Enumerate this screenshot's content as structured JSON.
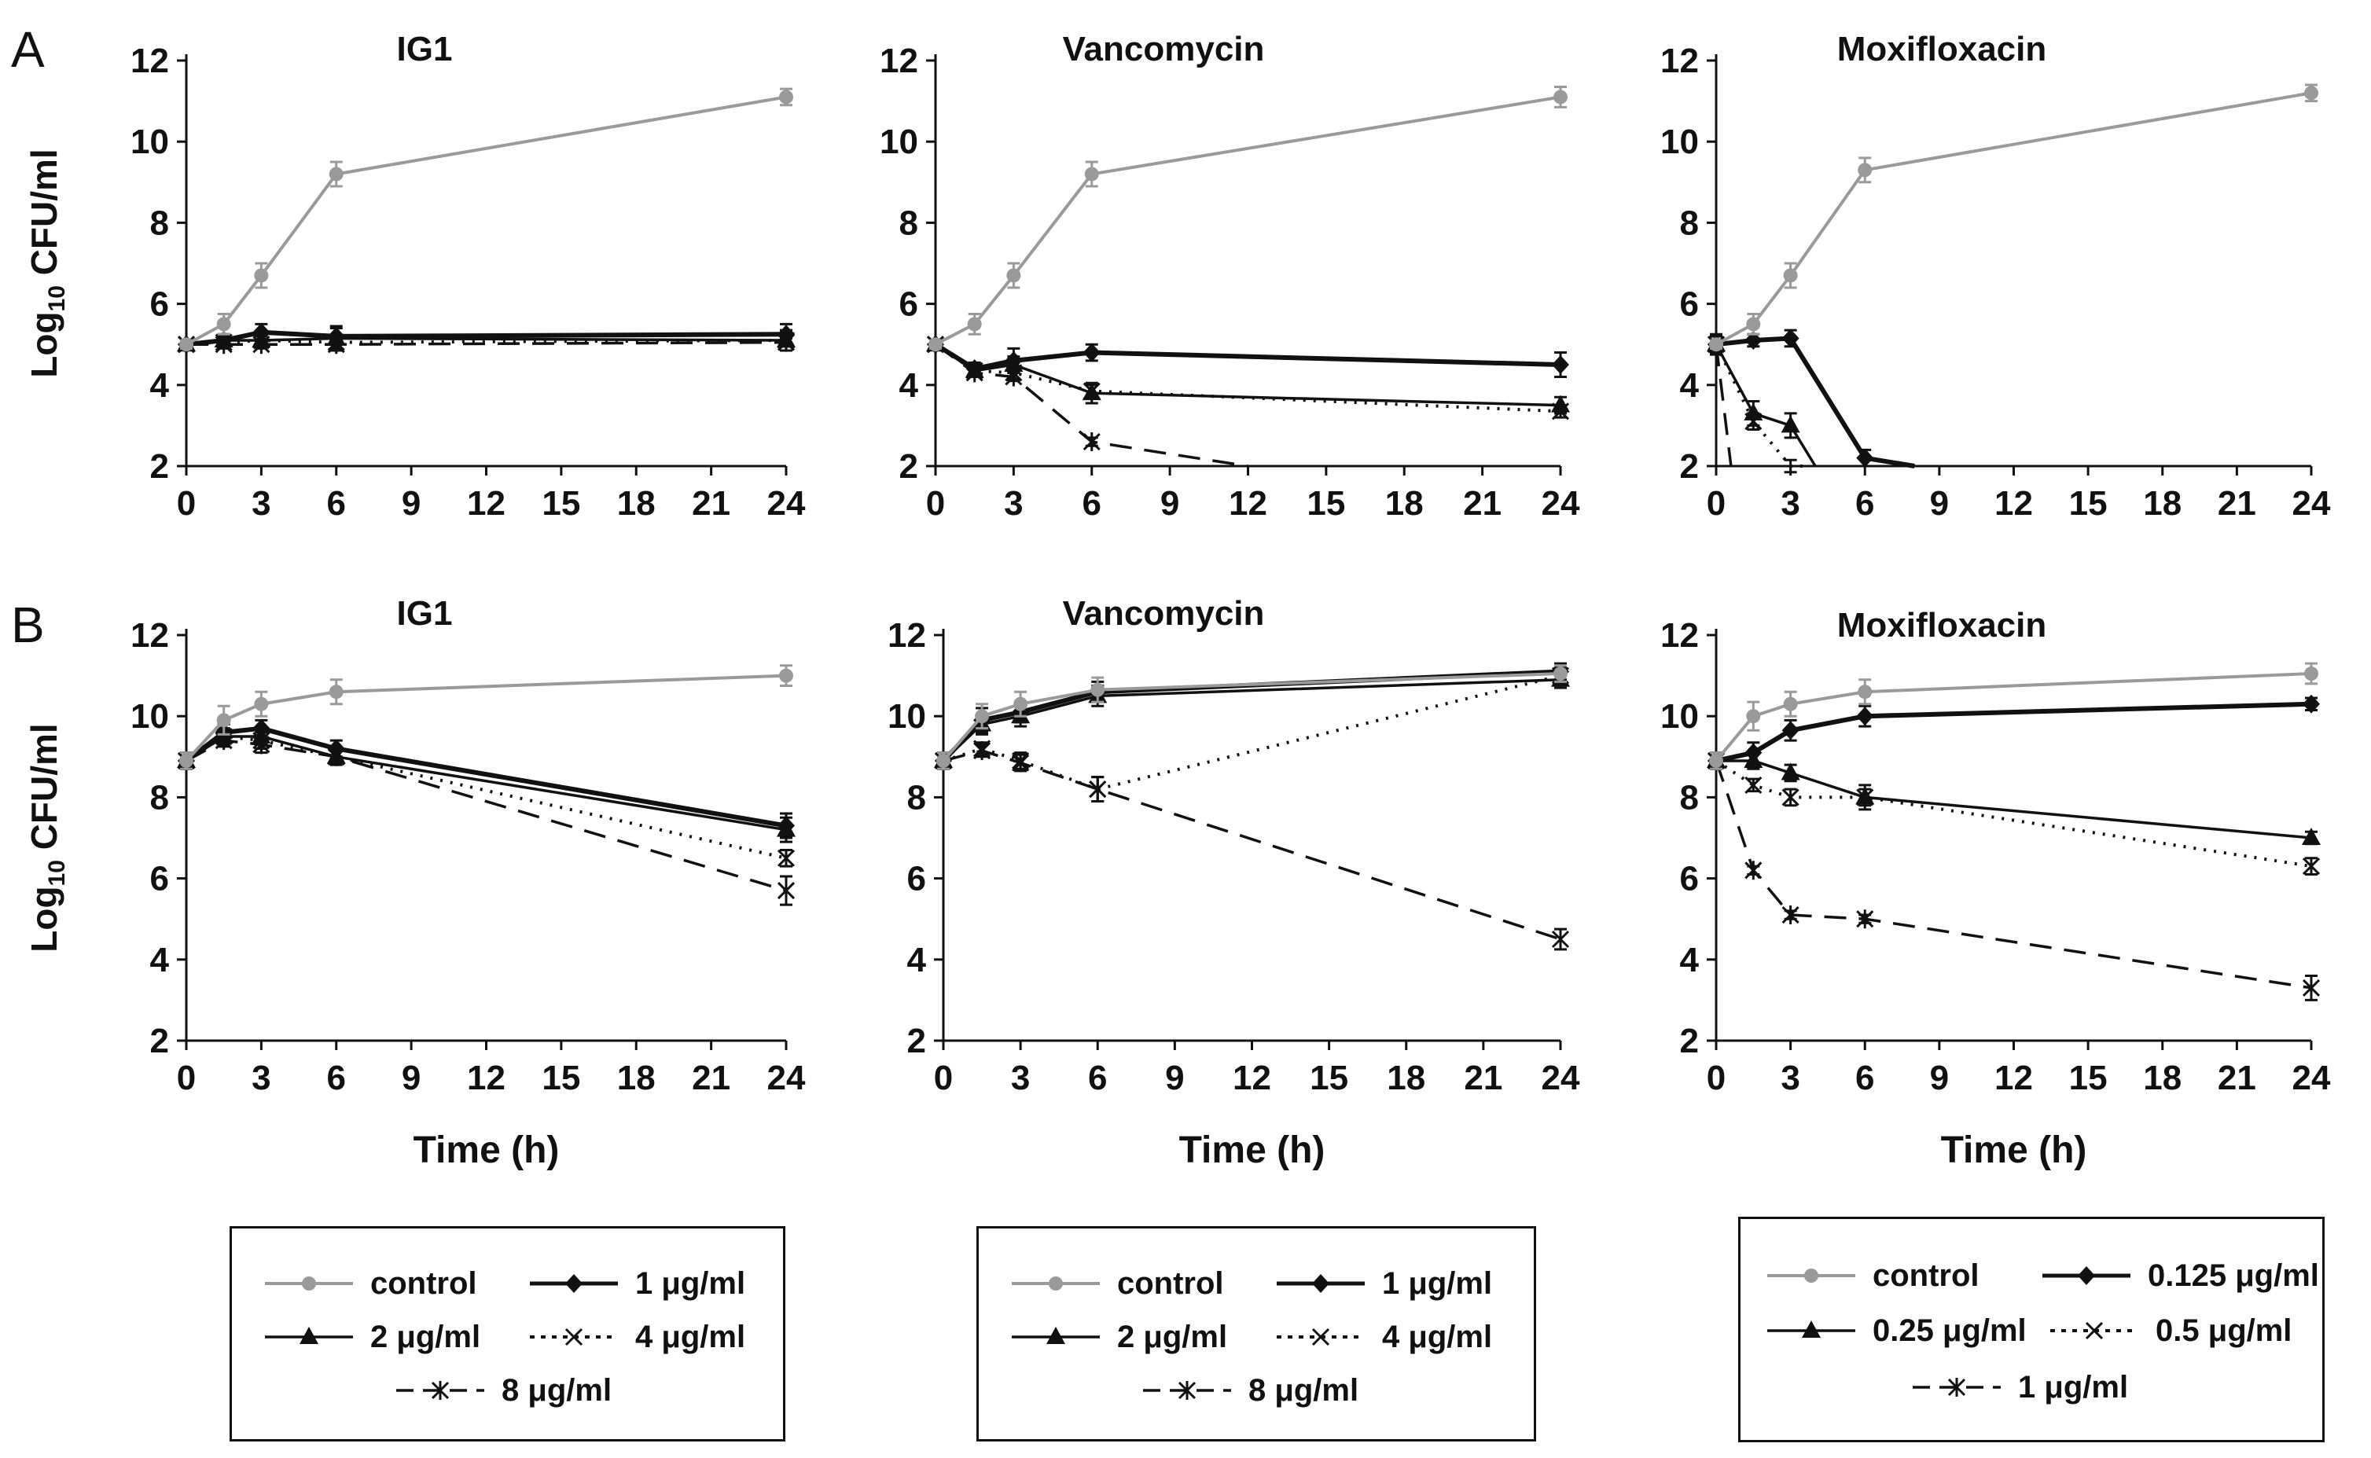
{
  "panel_labels": {
    "a": "A",
    "b": "B"
  },
  "legends": [
    {
      "entries": [
        {
          "label": "control",
          "style": "control"
        },
        {
          "label": "1 μg/ml",
          "style": "diamond"
        },
        {
          "label": "2 μg/ml",
          "style": "triangle"
        },
        {
          "label": "4 μg/ml",
          "style": "cross"
        },
        {
          "label": "8 μg/ml",
          "style": "star"
        }
      ]
    },
    {
      "entries": [
        {
          "label": "control",
          "style": "control"
        },
        {
          "label": "1 μg/ml",
          "style": "diamond"
        },
        {
          "label": "2 μg/ml",
          "style": "triangle"
        },
        {
          "label": "4 μg/ml",
          "style": "cross"
        },
        {
          "label": "8 μg/ml",
          "style": "star"
        }
      ]
    },
    {
      "entries": [
        {
          "label": "control",
          "style": "control"
        },
        {
          "label": "0.125 μg/ml",
          "style": "diamond"
        },
        {
          "label": "0.25 μg/ml",
          "style": "triangle"
        },
        {
          "label": "0.5 μg/ml",
          "style": "cross"
        },
        {
          "label": "1 μg/ml",
          "style": "star"
        }
      ]
    }
  ],
  "colors": {
    "control": "#9a9a9a",
    "black": "#111111"
  },
  "chart_data": [
    {
      "type": "line",
      "panel": "A",
      "title": "IG1",
      "xlabel": "",
      "ylabel": "Log10 CFU/ml",
      "ylabel_main": "Log",
      "ylabel_sub": "10",
      "ylabel_rest": " CFU/ml",
      "xlim": [
        0,
        24
      ],
      "ylim": [
        2,
        12
      ],
      "xticks": [
        0,
        3,
        6,
        9,
        12,
        15,
        18,
        21,
        24
      ],
      "yticks": [
        2,
        4,
        6,
        8,
        10,
        12
      ],
      "series": [
        {
          "name": "control",
          "style": "control",
          "x": [
            0,
            1.5,
            3,
            6,
            24
          ],
          "y": [
            5.0,
            5.5,
            6.7,
            9.2,
            11.1
          ],
          "err": [
            0.1,
            0.25,
            0.3,
            0.3,
            0.2
          ]
        },
        {
          "name": "1 μg/ml",
          "style": "diamond",
          "x": [
            0,
            1.5,
            3,
            6,
            24
          ],
          "y": [
            5.0,
            5.1,
            5.3,
            5.2,
            5.25
          ],
          "err": [
            0.1,
            0.15,
            0.2,
            0.2,
            0.25
          ]
        },
        {
          "name": "2 μg/ml",
          "style": "triangle",
          "x": [
            0,
            1.5,
            3,
            6,
            24
          ],
          "y": [
            5.0,
            5.1,
            5.1,
            5.15,
            5.1
          ],
          "err": [
            0.1,
            0.1,
            0.15,
            0.3,
            0.25
          ]
        },
        {
          "name": "4 μg/ml",
          "style": "cross",
          "x": [
            0,
            1.5,
            3,
            6,
            24
          ],
          "y": [
            5.0,
            5.05,
            5.1,
            5.05,
            5.1
          ],
          "err": [
            0.1,
            0.1,
            0.1,
            0.15,
            0.15
          ]
        },
        {
          "name": "8 μg/ml",
          "style": "star",
          "x": [
            0,
            1.5,
            3,
            6,
            24
          ],
          "y": [
            5.0,
            5.0,
            5.0,
            5.0,
            5.05
          ],
          "err": [
            0.1,
            0.1,
            0.1,
            0.1,
            0.1
          ]
        }
      ]
    },
    {
      "type": "line",
      "panel": "A",
      "title": "Vancomycin",
      "xlabel": "",
      "ylabel": "",
      "xlim": [
        0,
        24
      ],
      "ylim": [
        2,
        12
      ],
      "xticks": [
        0,
        3,
        6,
        9,
        12,
        15,
        18,
        21,
        24
      ],
      "yticks": [
        2,
        4,
        6,
        8,
        10,
        12
      ],
      "series": [
        {
          "name": "control",
          "style": "control",
          "x": [
            0,
            1.5,
            3,
            6,
            24
          ],
          "y": [
            5.0,
            5.5,
            6.7,
            9.2,
            11.1
          ],
          "err": [
            0.1,
            0.25,
            0.3,
            0.3,
            0.25
          ]
        },
        {
          "name": "1 μg/ml",
          "style": "diamond",
          "x": [
            0,
            1.5,
            3,
            6,
            24
          ],
          "y": [
            5.0,
            4.4,
            4.6,
            4.8,
            4.5
          ],
          "err": [
            0.1,
            0.15,
            0.3,
            0.2,
            0.3
          ]
        },
        {
          "name": "2 μg/ml",
          "style": "triangle",
          "x": [
            0,
            1.5,
            3,
            6,
            24
          ],
          "y": [
            5.0,
            4.35,
            4.5,
            3.8,
            3.5
          ],
          "err": [
            0.1,
            0.15,
            0.2,
            0.25,
            0.2
          ]
        },
        {
          "name": "4 μg/ml",
          "style": "cross",
          "x": [
            0,
            1.5,
            3,
            6,
            24
          ],
          "y": [
            5.0,
            4.35,
            4.3,
            3.85,
            3.35
          ],
          "err": [
            0.1,
            0.1,
            0.15,
            0.15,
            0.15
          ]
        },
        {
          "name": "8 μg/ml",
          "style": "star",
          "x": [
            0,
            1.5,
            3,
            6,
            12
          ],
          "y": [
            5.0,
            4.3,
            4.2,
            2.6,
            2.0
          ],
          "err": [
            0.1,
            0.1,
            0.1,
            0.1,
            0
          ]
        }
      ]
    },
    {
      "type": "line",
      "panel": "A",
      "title": "Moxifloxacin",
      "xlabel": "",
      "ylabel": "",
      "xlim": [
        0,
        24
      ],
      "ylim": [
        2,
        12
      ],
      "xticks": [
        0,
        3,
        6,
        9,
        12,
        15,
        18,
        21,
        24
      ],
      "yticks": [
        2,
        4,
        6,
        8,
        10,
        12
      ],
      "series": [
        {
          "name": "control",
          "style": "control",
          "x": [
            0,
            1.5,
            3,
            6,
            24
          ],
          "y": [
            5.0,
            5.5,
            6.7,
            9.3,
            11.2
          ],
          "err": [
            0.1,
            0.25,
            0.3,
            0.3,
            0.2
          ]
        },
        {
          "name": "0.125 μg/ml",
          "style": "diamond",
          "x": [
            0,
            1.5,
            3,
            6,
            8
          ],
          "y": [
            5.0,
            5.1,
            5.15,
            2.2,
            2.0
          ],
          "err": [
            0.25,
            0.15,
            0.2,
            0.2,
            0
          ]
        },
        {
          "name": "0.25 μg/ml",
          "style": "triangle",
          "x": [
            0,
            1.5,
            3,
            4
          ],
          "y": [
            5.0,
            3.3,
            3.0,
            2.0
          ],
          "err": [
            0.2,
            0.3,
            0.3,
            0
          ]
        },
        {
          "name": "0.5 μg/ml",
          "style": "cross",
          "x": [
            0,
            1.5,
            3,
            3.5
          ],
          "y": [
            5.0,
            3.1,
            2.0,
            2.0
          ],
          "err": [
            0.2,
            0.2,
            0.15,
            0
          ]
        },
        {
          "name": "1 μg/ml",
          "style": "star",
          "x": [
            0,
            0.6
          ],
          "y": [
            5.0,
            2.0
          ],
          "err": [
            0.2,
            0
          ]
        }
      ]
    },
    {
      "type": "line",
      "panel": "B",
      "title": "IG1",
      "xlabel": "Time (h)",
      "ylabel": "Log10 CFU/ml",
      "ylabel_main": "Log",
      "ylabel_sub": "10",
      "ylabel_rest": " CFU/ml",
      "xlim": [
        0,
        24
      ],
      "ylim": [
        2,
        12
      ],
      "xticks": [
        0,
        3,
        6,
        9,
        12,
        15,
        18,
        21,
        24
      ],
      "yticks": [
        2,
        4,
        6,
        8,
        10,
        12
      ],
      "series": [
        {
          "name": "control",
          "style": "control",
          "x": [
            0,
            1.5,
            3,
            6,
            24
          ],
          "y": [
            8.9,
            9.9,
            10.3,
            10.6,
            11.0
          ],
          "err": [
            0.2,
            0.35,
            0.3,
            0.3,
            0.25
          ]
        },
        {
          "name": "1 μg/ml",
          "style": "diamond",
          "x": [
            0,
            1.5,
            3,
            6,
            24
          ],
          "y": [
            8.9,
            9.6,
            9.7,
            9.2,
            7.3
          ],
          "err": [
            0.2,
            0.2,
            0.2,
            0.2,
            0.3
          ]
        },
        {
          "name": "2 μg/ml",
          "style": "triangle",
          "x": [
            0,
            1.5,
            3,
            6,
            24
          ],
          "y": [
            8.9,
            9.5,
            9.5,
            9.0,
            7.2
          ],
          "err": [
            0.2,
            0.2,
            0.2,
            0.2,
            0.3
          ]
        },
        {
          "name": "4 μg/ml",
          "style": "cross",
          "x": [
            0,
            1.5,
            3,
            6,
            24
          ],
          "y": [
            8.9,
            9.5,
            9.4,
            9.0,
            6.5
          ],
          "err": [
            0.2,
            0.15,
            0.2,
            0.15,
            0.2
          ]
        },
        {
          "name": "8 μg/ml",
          "style": "star",
          "x": [
            0,
            1.5,
            3,
            6,
            24
          ],
          "y": [
            8.9,
            9.4,
            9.3,
            9.0,
            5.7
          ],
          "err": [
            0.2,
            0.15,
            0.2,
            0.15,
            0.35
          ]
        }
      ]
    },
    {
      "type": "line",
      "panel": "B",
      "title": "Vancomycin",
      "xlabel": "Time (h)",
      "ylabel": "",
      "xlim": [
        0,
        24
      ],
      "ylim": [
        2,
        12
      ],
      "xticks": [
        0,
        3,
        6,
        9,
        12,
        15,
        18,
        21,
        24
      ],
      "yticks": [
        2,
        4,
        6,
        8,
        10,
        12
      ],
      "series": [
        {
          "name": "control",
          "style": "control",
          "x": [
            0,
            1.5,
            3,
            6,
            24
          ],
          "y": [
            8.9,
            10.0,
            10.3,
            10.65,
            11.05
          ],
          "err": [
            0.2,
            0.3,
            0.3,
            0.3,
            0.2
          ]
        },
        {
          "name": "1 μg/ml",
          "style": "diamond",
          "x": [
            0,
            1.5,
            3,
            6,
            24
          ],
          "y": [
            8.9,
            9.9,
            10.1,
            10.6,
            11.1
          ],
          "err": [
            0.2,
            0.3,
            0.25,
            0.25,
            0.2
          ]
        },
        {
          "name": "2 μg/ml",
          "style": "triangle",
          "x": [
            0,
            1.5,
            3,
            6,
            24
          ],
          "y": [
            8.9,
            9.8,
            10.0,
            10.5,
            10.9
          ],
          "err": [
            0.2,
            0.25,
            0.25,
            0.25,
            0.2
          ]
        },
        {
          "name": "4 μg/ml",
          "style": "cross",
          "x": [
            0,
            1.5,
            3,
            6,
            24
          ],
          "y": [
            8.9,
            9.2,
            8.9,
            8.2,
            11.0
          ],
          "err": [
            0.2,
            0.15,
            0.2,
            0.3,
            0.2
          ]
        },
        {
          "name": "8 μg/ml",
          "style": "star",
          "x": [
            0,
            1.5,
            3,
            6,
            24
          ],
          "y": [
            8.9,
            9.15,
            8.85,
            8.2,
            4.5
          ],
          "err": [
            0.2,
            0.15,
            0.2,
            0.3,
            0.25
          ]
        }
      ]
    },
    {
      "type": "line",
      "panel": "B",
      "title": "Moxifloxacin",
      "xlabel": "Time (h)",
      "ylabel": "",
      "xlim": [
        0,
        24
      ],
      "ylim": [
        2,
        12
      ],
      "xticks": [
        0,
        3,
        6,
        9,
        12,
        15,
        18,
        21,
        24
      ],
      "yticks": [
        2,
        4,
        6,
        8,
        10,
        12
      ],
      "series": [
        {
          "name": "control",
          "style": "control",
          "x": [
            0,
            1.5,
            3,
            6,
            24
          ],
          "y": [
            8.9,
            10.0,
            10.3,
            10.6,
            11.05
          ],
          "err": [
            0.2,
            0.35,
            0.3,
            0.3,
            0.25
          ]
        },
        {
          "name": "0.125 μg/ml",
          "style": "diamond",
          "x": [
            0,
            1.5,
            3,
            6,
            24
          ],
          "y": [
            8.9,
            9.1,
            9.65,
            10.0,
            10.3
          ],
          "err": [
            0.2,
            0.25,
            0.25,
            0.25,
            0.15
          ]
        },
        {
          "name": "0.25 μg/ml",
          "style": "triangle",
          "x": [
            0,
            1.5,
            3,
            6,
            24
          ],
          "y": [
            8.9,
            8.9,
            8.6,
            8.0,
            7.0
          ],
          "err": [
            0.2,
            0.2,
            0.2,
            0.3,
            0.15
          ]
        },
        {
          "name": "0.5 μg/ml",
          "style": "cross",
          "x": [
            0,
            1.5,
            3,
            6,
            24
          ],
          "y": [
            8.9,
            8.3,
            8.0,
            8.0,
            6.3
          ],
          "err": [
            0.2,
            0.15,
            0.2,
            0.2,
            0.2
          ]
        },
        {
          "name": "1 μg/ml",
          "style": "star",
          "x": [
            0,
            1.5,
            3,
            6,
            24
          ],
          "y": [
            8.9,
            6.2,
            5.1,
            5.0,
            3.3
          ],
          "err": [
            0.2,
            0.1,
            0.1,
            0.1,
            0.3
          ]
        }
      ]
    }
  ]
}
